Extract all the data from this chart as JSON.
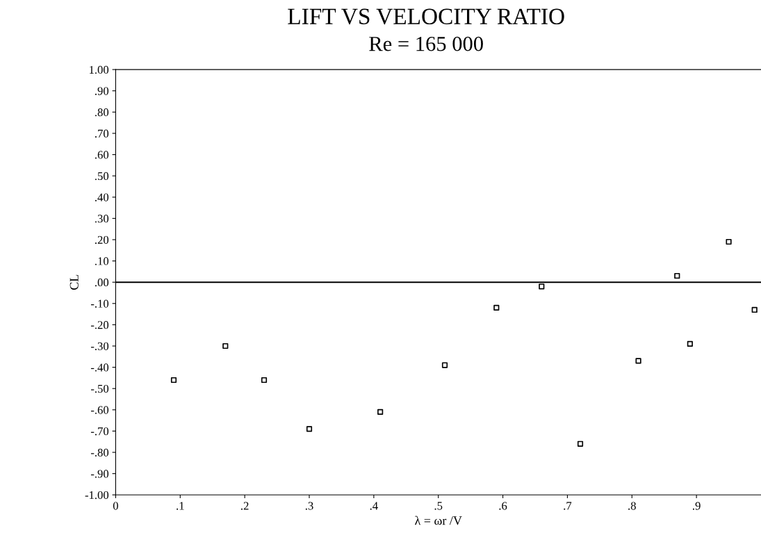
{
  "chart_data": {
    "type": "scatter",
    "title": "LIFT VS VELOCITY RATIO",
    "subtitle": "Re = 165 000",
    "xlabel": "λ = ωr /V",
    "ylabel": "CL",
    "x": [
      0.09,
      0.17,
      0.23,
      0.3,
      0.41,
      0.51,
      0.59,
      0.66,
      0.72,
      0.81,
      0.87,
      0.89,
      0.95,
      0.99
    ],
    "series": [
      {
        "color": "#000000",
        "values": [
          -0.46,
          -0.3,
          -0.46,
          -0.69,
          -0.61,
          -0.39,
          -0.12,
          -0.02,
          -0.76,
          -0.37,
          0.03,
          -0.29,
          0.19,
          -0.13
        ]
      }
    ],
    "marker": "square",
    "grid": false,
    "legend": false,
    "xlim": [
      0,
      1.0
    ],
    "xticks": [
      {
        "value": 0,
        "label": "0"
      },
      {
        "value": 0.1,
        "label": ".1"
      },
      {
        "value": 0.2,
        "label": ".2"
      },
      {
        "value": 0.3,
        "label": ".3"
      },
      {
        "value": 0.4,
        "label": ".4"
      },
      {
        "value": 0.5,
        "label": ".5"
      },
      {
        "value": 0.6,
        "label": ".6"
      },
      {
        "value": 0.7,
        "label": ".7"
      },
      {
        "value": 0.8,
        "label": ".8"
      },
      {
        "value": 0.9,
        "label": ".9"
      }
    ],
    "ylim": [
      -1.0,
      1.0
    ],
    "yticks": [
      {
        "value": 1.0,
        "label": "1.00"
      },
      {
        "value": 0.9,
        "label": ".90"
      },
      {
        "value": 0.8,
        "label": ".80"
      },
      {
        "value": 0.7,
        "label": ".70"
      },
      {
        "value": 0.6,
        "label": ".60"
      },
      {
        "value": 0.5,
        "label": ".50"
      },
      {
        "value": 0.4,
        "label": ".40"
      },
      {
        "value": 0.3,
        "label": ".30"
      },
      {
        "value": 0.2,
        "label": ".20"
      },
      {
        "value": 0.1,
        "label": ".10"
      },
      {
        "value": 0,
        "label": ".00"
      },
      {
        "value": -0.1,
        "label": "-.10"
      },
      {
        "value": -0.2,
        "label": "-.20"
      },
      {
        "value": -0.3,
        "label": "-.30"
      },
      {
        "value": -0.4,
        "label": "-.40"
      },
      {
        "value": -0.5,
        "label": "-.50"
      },
      {
        "value": -0.6,
        "label": "-.60"
      },
      {
        "value": -0.7,
        "label": "-.70"
      },
      {
        "value": -0.8,
        "label": "-.80"
      },
      {
        "value": -0.9,
        "label": "-.90"
      },
      {
        "value": -1.0,
        "label": "-1.00"
      }
    ],
    "ref_lines": [
      {
        "axis": "y",
        "value": 0,
        "color": "#000000",
        "line_style": "solid"
      }
    ]
  }
}
